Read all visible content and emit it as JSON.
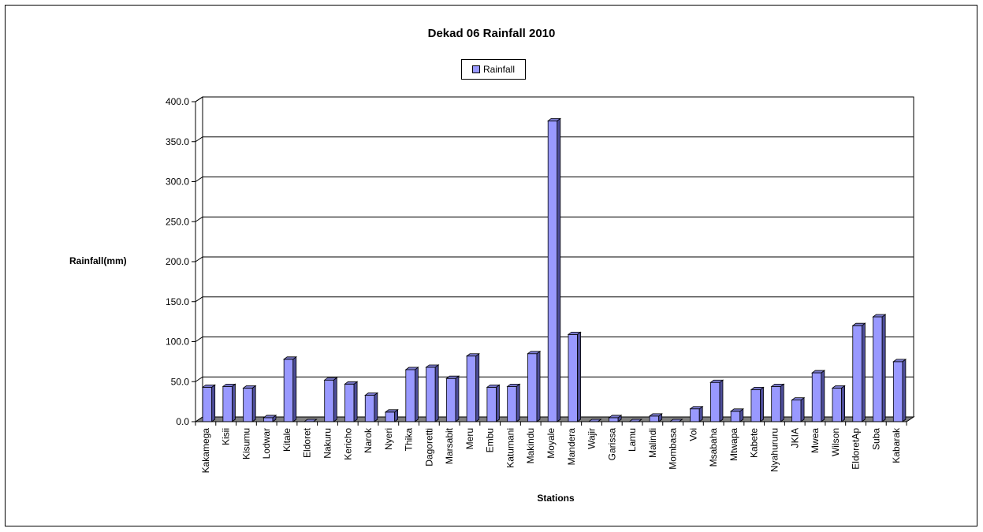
{
  "chart_data": {
    "type": "bar",
    "title": "Dekad 06 Rainfall 2010",
    "xlabel": "Stations",
    "ylabel": "Rainfall(mm)",
    "ylim": [
      0,
      400
    ],
    "yticks": [
      "0.0",
      "50.0",
      "100.0",
      "150.0",
      "200.0",
      "250.0",
      "300.0",
      "350.0",
      "400.0"
    ],
    "grid": true,
    "legend_position": "top-center",
    "bar_color": "#9999FF",
    "series": [
      {
        "name": "Rainfall",
        "values": [
          43,
          44,
          42,
          5,
          78,
          0,
          52,
          47,
          33,
          12,
          65,
          68,
          54,
          82,
          43,
          44,
          85,
          376,
          109,
          0,
          5,
          0,
          7,
          0,
          16,
          49,
          13,
          40,
          44,
          27,
          61,
          42,
          120,
          131,
          75
        ]
      }
    ],
    "categories": [
      "Kakamega",
      "Kisii",
      "Kisumu",
      "Lodwar",
      "Kitale",
      "Eldoret",
      "Nakuru",
      "Kericho",
      "Narok",
      "Nyeri",
      "Thika",
      "Dagoretti",
      "Marsabit",
      "Meru",
      "Embu",
      "Katumani",
      "Makindu",
      "Moyale",
      "Mandera",
      "Wajir",
      "Garissa",
      "Lamu",
      "Malindi",
      "Mombasa",
      "Voi",
      "Msabaha",
      "Mtwapa",
      "Kabete",
      "Nyahururu",
      "JKIA",
      "Mwea",
      "Wilson",
      "EldoretAp",
      "Suba",
      "Kabarak"
    ]
  }
}
